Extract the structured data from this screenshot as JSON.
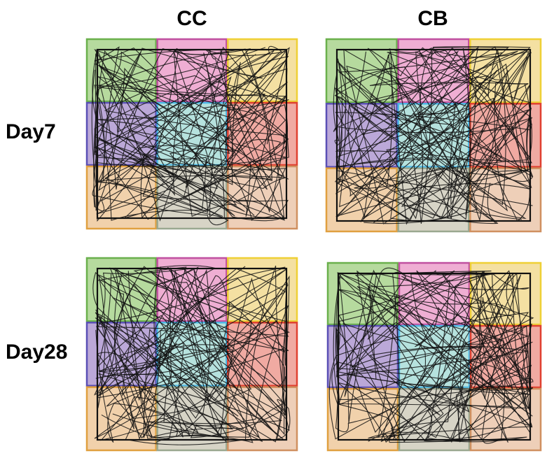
{
  "columns": [
    "CC",
    "CB"
  ],
  "rows": [
    "Day7",
    "Day28"
  ]
}
